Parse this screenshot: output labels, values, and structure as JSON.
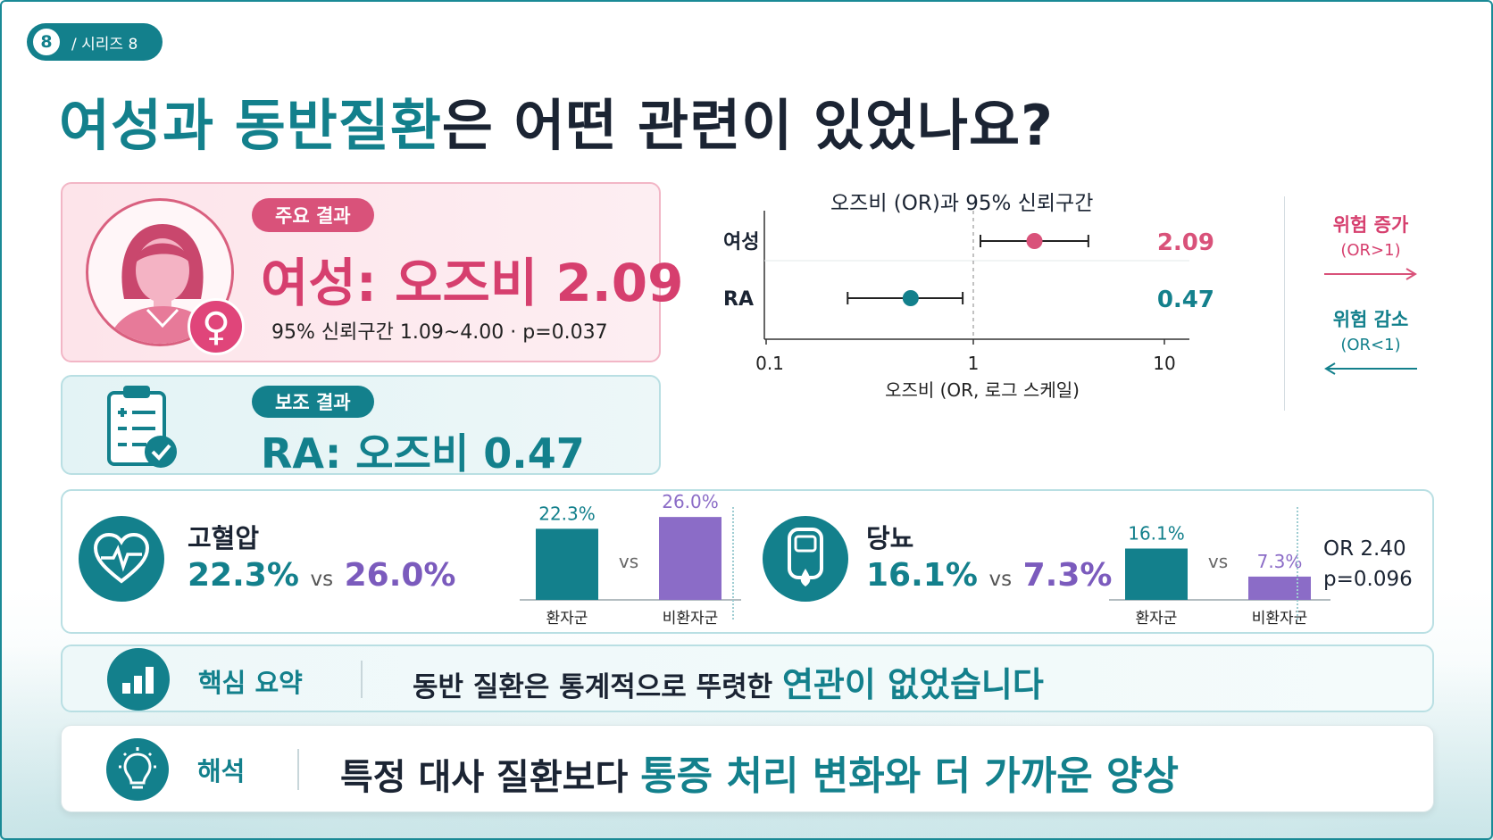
{
  "series": {
    "number": "8",
    "label": "/ 시리즈 8"
  },
  "title": {
    "part1": "여성과 동반질환",
    "part2": "은 어떤 관련이 있었나요?"
  },
  "primary": {
    "badge": "주요 결과",
    "headline": "여성: 오즈비 2.09",
    "ci": "95% 신뢰구간 1.09~4.00 · p=0.037"
  },
  "secondary": {
    "badge": "보조 결과",
    "headline": "RA: 오즈비 0.47"
  },
  "chart_data": {
    "type": "scatter",
    "title": "오즈비 (OR)과 95% 신뢰구간",
    "xlabel": "오즈비 (OR, 로그 스케일)",
    "x_scale": "log",
    "xlim": [
      0.1,
      10
    ],
    "x_ticks": [
      "0.1",
      "1",
      "10"
    ],
    "reference_line": 1,
    "series": [
      {
        "name": "여성",
        "or": 2.09,
        "ci_low": 1.09,
        "ci_high": 4.0,
        "label": "2.09",
        "color": "#d9527a"
      },
      {
        "name": "RA",
        "or": 0.47,
        "ci_low": 0.22,
        "ci_high": 0.88,
        "label": "0.47",
        "color": "#13808c"
      }
    ]
  },
  "legend": {
    "up_title": "위험 증가",
    "up_sub": "(OR>1)",
    "down_title": "위험 감소",
    "down_sub": "(OR<1)"
  },
  "hypertension": {
    "name": "고혈압",
    "val_a": "22.3%",
    "vs": "vs",
    "val_b": "26.0%",
    "bars": [
      {
        "label": "환자군",
        "value": 22.3,
        "text": "22.3%"
      },
      {
        "label": "비환자군",
        "value": 26.0,
        "text": "26.0%"
      }
    ],
    "vs_label": "vs"
  },
  "diabetes": {
    "name": "당뇨",
    "val_a": "16.1%",
    "vs": "vs",
    "val_b": "7.3%",
    "bars": [
      {
        "label": "환자군",
        "value": 16.1,
        "text": "16.1%"
      },
      {
        "label": "비환자군",
        "value": 7.3,
        "text": "7.3%"
      }
    ],
    "vs_label": "vs",
    "or_line": "OR 2.40",
    "p_line": "p=0.096"
  },
  "summary": {
    "label": "핵심 요약",
    "text": "동반 질환은 통계적으로 뚜렷한 ",
    "highlight": "연관이 없었습니다"
  },
  "interpretation": {
    "label": "해석",
    "text": "특정 대사 질환보다 ",
    "highlight": "통증 처리 변화와 더 가까운 양상"
  },
  "colors": {
    "teal": "#13808c",
    "pink": "#d9527a",
    "purple": "#8b6cc7"
  }
}
